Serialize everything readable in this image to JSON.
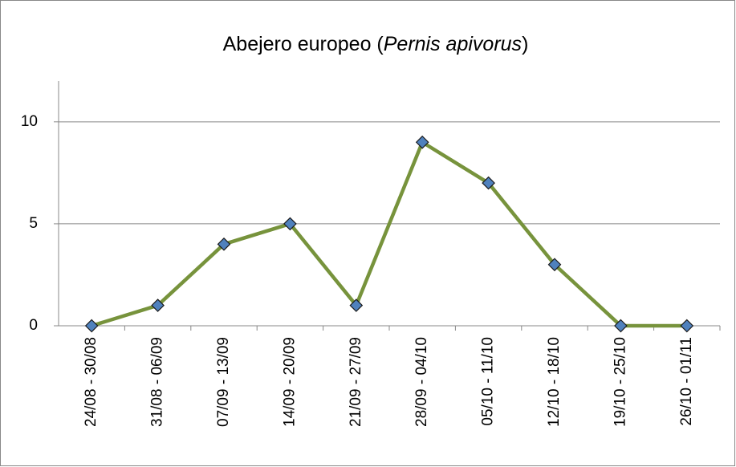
{
  "chart_data": {
    "type": "line",
    "title": [
      "Abejero europeo (",
      "Pernis apivorus",
      ")"
    ],
    "categories": [
      "24/08 - 30/08",
      "31/08 - 06/09",
      "07/09 - 13/09",
      "14/09 - 20/09",
      "21/09 - 27/09",
      "28/09 - 04/10",
      "05/10 - 11/10",
      "12/10 - 18/10",
      "19/10 - 25/10",
      "26/10 - 01/11"
    ],
    "series": [
      {
        "color": "#77933c",
        "marker_color": "#4f81bd",
        "values": [
          0,
          1,
          4,
          5,
          1,
          9,
          7,
          3,
          0,
          0
        ]
      }
    ],
    "ylim": [
      0,
      12
    ],
    "yticks": [
      0,
      5,
      10
    ],
    "grid": true
  }
}
